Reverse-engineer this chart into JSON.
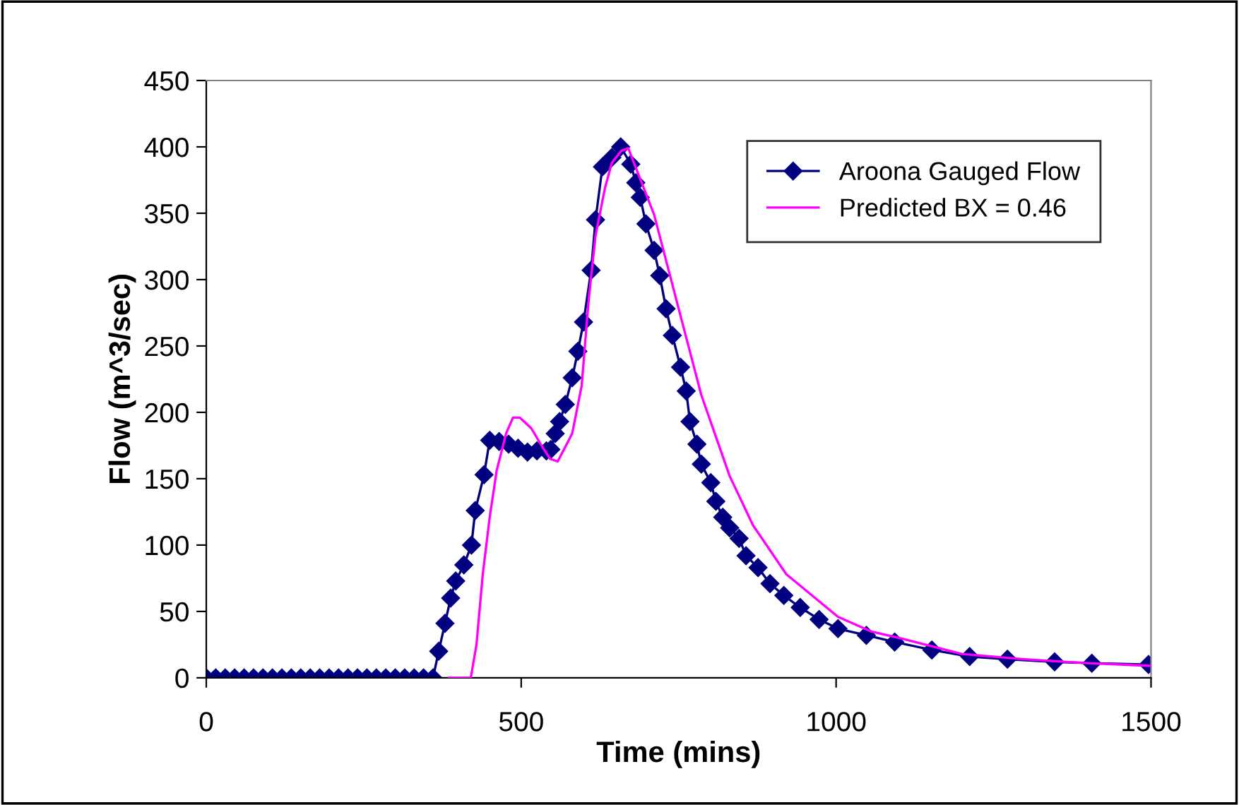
{
  "chart_data": {
    "type": "line",
    "xlabel": "Time (mins)",
    "ylabel": "Flow (m^3/sec)",
    "xlim": [
      0,
      1500
    ],
    "xticks": [
      0,
      500,
      1000,
      1500
    ],
    "ylim": [
      0,
      450
    ],
    "yticks": [
      0,
      50,
      100,
      150,
      200,
      250,
      300,
      350,
      400,
      450
    ],
    "grid": false,
    "legend": "top right",
    "series": [
      {
        "name": "Aroona Gauged Flow",
        "color": "#000080",
        "marker": "diamond",
        "line_style": "solid",
        "x": [
          0,
          15,
          30,
          45,
          60,
          75,
          90,
          105,
          120,
          135,
          150,
          165,
          180,
          195,
          210,
          225,
          240,
          255,
          270,
          285,
          300,
          315,
          330,
          345,
          360,
          369,
          379,
          388,
          396,
          409,
          421,
          427,
          441,
          450,
          465,
          480,
          495,
          510,
          525,
          540,
          547,
          554,
          561,
          570,
          581,
          590,
          599,
          611,
          618,
          629,
          644,
          658,
          674,
          682,
          689,
          698,
          711,
          720,
          730,
          740,
          753,
          762,
          768,
          779,
          786,
          801,
          809,
          820,
          831,
          846,
          857,
          876,
          895,
          917,
          943,
          973,
          1003,
          1048,
          1093,
          1152,
          1212,
          1272,
          1347,
          1406,
          1496
        ],
        "values": [
          0,
          0,
          0,
          0,
          0,
          0,
          0,
          0,
          0,
          0,
          0,
          0,
          0,
          0,
          0,
          0,
          0,
          0,
          0,
          0,
          0,
          0,
          0,
          0,
          0,
          20,
          41,
          60,
          73,
          85,
          100,
          126,
          153,
          179,
          178,
          176,
          173,
          170,
          171,
          171,
          172,
          184,
          193,
          206,
          226,
          246,
          268,
          307,
          345,
          385,
          392,
          400,
          387,
          373,
          362,
          342,
          322,
          303,
          278,
          258,
          234,
          216,
          193,
          176,
          161,
          147,
          133,
          121,
          113,
          105,
          92,
          83,
          71,
          62,
          53,
          44,
          37,
          32,
          27,
          21,
          16,
          14,
          12,
          11,
          10
        ]
      },
      {
        "name": "Predicted BX = 0.46",
        "color": "#ff00ff",
        "marker": "none",
        "line_style": "solid",
        "x": [
          385,
          420,
          429,
          439,
          450,
          461,
          476,
          487,
          498,
          516,
          531,
          546,
          558,
          581,
          596,
          607,
          618,
          633,
          644,
          659,
          670,
          711,
          749,
          786,
          831,
          868,
          921,
          1003,
          1055,
          1100,
          1200,
          1300,
          1400,
          1500
        ],
        "values": [
          0,
          0,
          25,
          78,
          121,
          156,
          184,
          196,
          196,
          188,
          176,
          165,
          163,
          184,
          220,
          284,
          333,
          369,
          388,
          397,
          399,
          349,
          280,
          213,
          152,
          115,
          78,
          46,
          35,
          30,
          18,
          14,
          11,
          9
        ]
      }
    ]
  }
}
